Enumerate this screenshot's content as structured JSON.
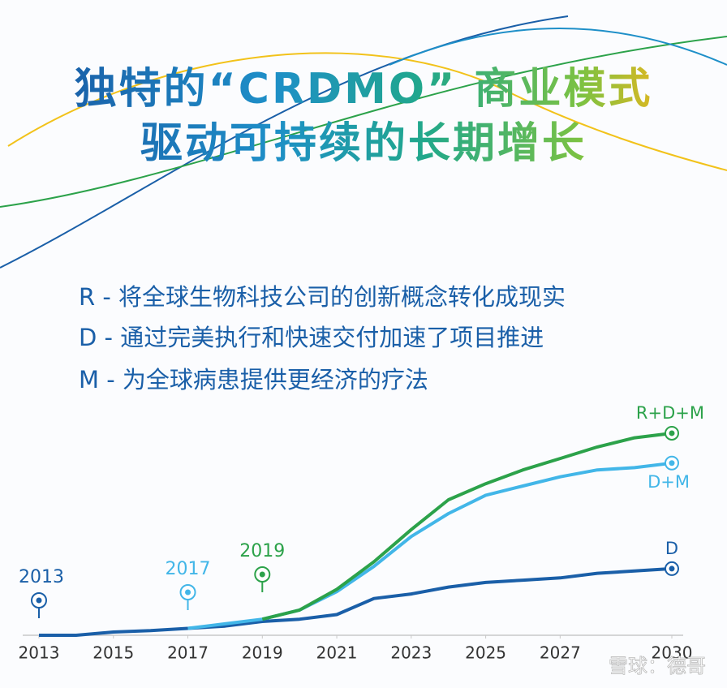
{
  "header": {
    "title_lines": [
      "独特的“CRDMO” 商业模式",
      "驱动可持续的长期增长"
    ]
  },
  "bullets": [
    "R - 将全球生物科技公司的创新概念转化成现实",
    "D - 通过完美执行和快速交付加速了项目推进",
    "M - 为全球病患提供更经济的疗法"
  ],
  "chart_data": {
    "type": "line",
    "x": [
      2013,
      2014,
      2015,
      2016,
      2017,
      2018,
      2019,
      2020,
      2021,
      2022,
      2023,
      2024,
      2025,
      2026,
      2027,
      2028,
      2029,
      2030
    ],
    "xlim": [
      2013,
      2030
    ],
    "xticks": [
      2013,
      2015,
      2017,
      2019,
      2021,
      2023,
      2025,
      2027,
      2030
    ],
    "ylim": [
      0,
      100
    ],
    "grid": false,
    "series": [
      {
        "name": "D",
        "color": "#1a5fa8",
        "values": [
          0,
          0,
          1.4,
          2,
          3,
          4,
          6,
          7,
          9,
          16,
          18,
          21,
          23,
          24,
          25,
          27,
          28,
          29
        ]
      },
      {
        "name": "D+M",
        "color": "#42b6e8",
        "values": [
          null,
          null,
          null,
          null,
          3,
          5,
          7,
          11,
          19,
          30,
          43,
          53,
          61,
          65,
          69,
          72,
          73,
          75
        ]
      },
      {
        "name": "R+D+M",
        "color": "#2ca24a",
        "values": [
          null,
          null,
          null,
          null,
          null,
          null,
          7,
          11,
          20,
          32,
          46,
          59,
          66,
          72,
          77,
          82,
          86,
          88
        ]
      }
    ],
    "milestones": [
      {
        "x": 2013,
        "color": "#1a5fa8"
      },
      {
        "x": 2017,
        "color": "#42b6e8"
      },
      {
        "x": 2019,
        "color": "#2ca24a"
      }
    ]
  },
  "watermark": "雪球：德哥"
}
